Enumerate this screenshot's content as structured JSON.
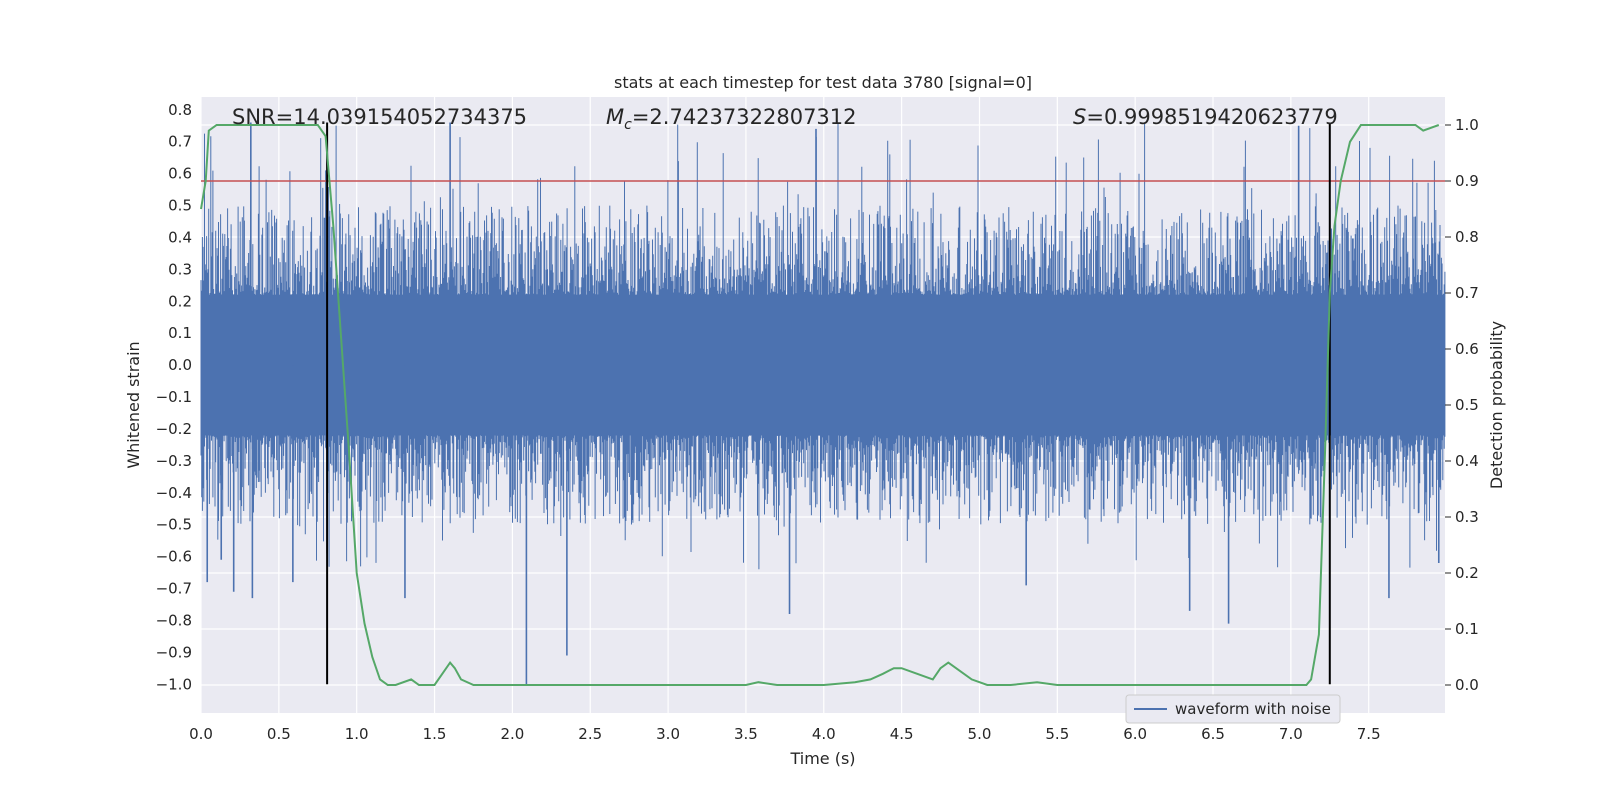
{
  "chart_data": {
    "type": "line",
    "title": "stats at each timestep for test data 3780 [signal=0]",
    "xlabel": "Time (s)",
    "ylabel": "Whitened strain",
    "y2label": "Detection probability",
    "xlim": [
      0.0,
      7.99
    ],
    "ylim": [
      -1.09,
      0.84
    ],
    "y2lim": [
      -0.05,
      1.05
    ],
    "x_ticks": [
      "0.0",
      "0.5",
      "1.0",
      "1.5",
      "2.0",
      "2.5",
      "3.0",
      "3.5",
      "4.0",
      "4.5",
      "5.0",
      "5.5",
      "6.0",
      "6.5",
      "7.0",
      "7.5"
    ],
    "y_ticks": [
      "0.8",
      "0.7",
      "0.6",
      "0.5",
      "0.4",
      "0.3",
      "0.2",
      "0.1",
      "0.0",
      "-0.1",
      "-0.2",
      "-0.3",
      "-0.4",
      "-0.5",
      "-0.6",
      "-0.7",
      "-0.8",
      "-0.9",
      "-1.0"
    ],
    "y2_ticks": [
      "1.0",
      "0.9",
      "0.8",
      "0.7",
      "0.6",
      "0.5",
      "0.4",
      "0.3",
      "0.2",
      "0.1",
      "0.0"
    ],
    "grid": true,
    "legend_position": "lower-right",
    "annotations": {
      "snr": "SNR=14.039154052734375",
      "mc_symbol": "M",
      "mc_sub": "c",
      "mc_value": "=2.74237322807312",
      "s_symbol": "S",
      "s_value": "=0.9998519420623779"
    },
    "threshold": {
      "value": 0.9,
      "axis": "y2",
      "color": "#c44e52"
    },
    "vertical_markers": {
      "x": [
        0.81,
        7.25
      ],
      "y_top": 0.76,
      "y_bottom": -1.0,
      "color": "#000000"
    },
    "series": [
      {
        "name": "waveform with noise",
        "axis": "y",
        "color": "#4c72b0",
        "style": "dense-noise",
        "envelope": {
          "core_abs": 0.22,
          "typical_peak": 0.5,
          "max": 0.76,
          "min": -1.0
        },
        "x_start": 0.0,
        "x_end": 7.99,
        "spikes": [
          [
            0.04,
            -0.68
          ],
          [
            0.13,
            -0.61
          ],
          [
            0.21,
            -0.71
          ],
          [
            0.32,
            0.76
          ],
          [
            0.33,
            -0.73
          ],
          [
            0.59,
            -0.68
          ],
          [
            0.81,
            -0.59
          ],
          [
            1.31,
            -0.73
          ],
          [
            1.6,
            0.76
          ],
          [
            2.09,
            -1.0
          ],
          [
            2.35,
            -0.91
          ],
          [
            3.78,
            -0.78
          ],
          [
            3.95,
            0.74
          ],
          [
            5.3,
            -0.69
          ],
          [
            6.35,
            -0.77
          ],
          [
            6.6,
            -0.81
          ],
          [
            7.05,
            0.75
          ],
          [
            7.63,
            -0.73
          ],
          [
            7.95,
            -0.62
          ]
        ]
      },
      {
        "name": "",
        "axis": "y2",
        "color": "#55a868",
        "x": [
          0.0,
          0.03,
          0.05,
          0.1,
          0.2,
          0.3,
          0.4,
          0.5,
          0.6,
          0.7,
          0.75,
          0.8,
          0.85,
          0.9,
          0.95,
          1.0,
          1.05,
          1.1,
          1.15,
          1.2,
          1.25,
          1.35,
          1.4,
          1.5,
          1.55,
          1.6,
          1.63,
          1.67,
          1.75,
          1.85,
          2.0,
          2.1,
          2.3,
          2.45,
          2.6,
          3.0,
          3.3,
          3.5,
          3.58,
          3.7,
          3.85,
          4.0,
          4.2,
          4.3,
          4.38,
          4.45,
          4.5,
          4.6,
          4.7,
          4.75,
          4.8,
          4.85,
          4.95,
          5.05,
          5.2,
          5.37,
          5.5,
          5.7,
          6.0,
          6.5,
          6.8,
          7.0,
          7.1,
          7.13,
          7.18,
          7.22,
          7.25,
          7.28,
          7.32,
          7.38,
          7.45,
          7.6,
          7.8,
          7.85,
          7.95
        ],
        "values": [
          0.85,
          0.9,
          0.99,
          1.0,
          1.0,
          1.0,
          1.0,
          1.0,
          1.0,
          1.0,
          1.0,
          0.98,
          0.82,
          0.62,
          0.42,
          0.2,
          0.11,
          0.05,
          0.01,
          0.0,
          0.0,
          0.01,
          0.0,
          0.0,
          0.02,
          0.04,
          0.03,
          0.01,
          0.0,
          0.0,
          0.0,
          0.0,
          0.0,
          0.0,
          0.0,
          0.0,
          0.0,
          0.0,
          0.005,
          0.0,
          0.0,
          0.0,
          0.005,
          0.01,
          0.02,
          0.03,
          0.03,
          0.02,
          0.01,
          0.03,
          0.04,
          0.03,
          0.01,
          0.0,
          0.0,
          0.005,
          0.0,
          0.0,
          0.0,
          0.0,
          0.0,
          0.0,
          0.0,
          0.01,
          0.09,
          0.42,
          0.7,
          0.82,
          0.9,
          0.97,
          1.0,
          1.0,
          1.0,
          0.99,
          1.0
        ]
      }
    ]
  }
}
